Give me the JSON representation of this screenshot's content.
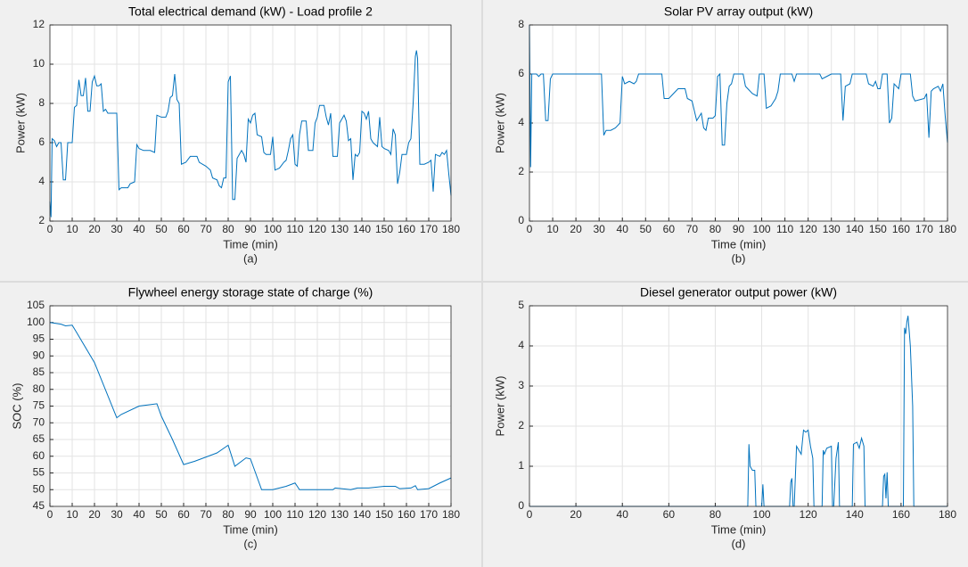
{
  "chart_data": [
    {
      "type": "line",
      "title": "Total electrical demand (kW) - Load profile 2",
      "xlabel": "Time (min)",
      "ylabel": "Power (kW)",
      "caption": "(a)",
      "color": "#0072bd",
      "grid": true,
      "xlim": [
        0,
        180
      ],
      "ylim": [
        2,
        12
      ],
      "xticks": [
        0,
        10,
        20,
        30,
        40,
        50,
        60,
        70,
        80,
        90,
        100,
        110,
        120,
        130,
        140,
        150,
        160,
        170,
        180
      ],
      "yticks": [
        2,
        4,
        6,
        8,
        10,
        12
      ],
      "x": [
        0,
        0.5,
        1,
        2,
        3,
        4,
        5,
        6,
        7,
        8,
        10,
        11,
        12,
        13,
        14,
        15,
        16,
        17,
        18,
        19,
        20,
        21,
        22,
        23,
        24,
        25,
        26,
        30,
        31,
        32,
        35,
        36,
        38,
        39,
        40,
        42,
        45,
        47,
        48,
        50,
        52,
        53,
        54,
        55,
        56,
        57,
        58,
        59,
        61,
        63,
        66,
        67,
        70,
        72,
        73,
        75,
        76,
        77,
        78,
        79,
        80,
        81,
        82,
        83,
        84,
        86,
        87,
        88,
        89,
        90,
        91,
        92,
        93,
        95,
        96,
        97,
        99,
        100,
        101,
        103,
        105,
        106,
        107,
        108,
        109,
        110,
        111,
        112,
        113,
        115,
        116,
        118,
        119,
        120,
        121,
        123,
        124,
        125,
        126,
        127,
        129,
        130,
        131,
        132,
        133,
        134,
        135,
        136,
        137,
        138,
        139,
        140,
        141,
        142,
        143,
        144,
        145,
        147,
        148,
        149,
        150,
        152,
        153,
        154,
        155,
        156,
        157,
        158,
        160,
        161,
        162,
        163,
        164,
        164.5,
        165,
        166,
        168,
        170,
        171,
        172,
        173,
        175,
        176,
        177,
        178,
        179,
        180
      ],
      "values": [
        3,
        2.2,
        6.2,
        6.1,
        5.8,
        6,
        6,
        4.1,
        4.1,
        6,
        6,
        7.8,
        7.9,
        9.2,
        8.4,
        8.4,
        9.3,
        7.6,
        7.6,
        9.1,
        9.4,
        8.9,
        8.9,
        9,
        7.6,
        7.7,
        7.5,
        7.5,
        3.6,
        3.7,
        3.7,
        3.9,
        4,
        5.9,
        5.7,
        5.6,
        5.6,
        5.5,
        7.4,
        7.3,
        7.3,
        7.6,
        8.3,
        8.4,
        9.5,
        8.2,
        8,
        4.9,
        5,
        5.3,
        5.3,
        5,
        4.8,
        4.6,
        4.2,
        4.1,
        3.8,
        3.7,
        4.2,
        4.2,
        9.1,
        9.4,
        3.1,
        3.1,
        5.2,
        5.6,
        5.4,
        5,
        7.2,
        7,
        7.4,
        7.5,
        6.4,
        6.3,
        5.5,
        5.4,
        5.4,
        6.3,
        4.6,
        4.7,
        5,
        5.1,
        5.6,
        6.2,
        6.4,
        4.9,
        4.8,
        6.4,
        7.1,
        7.1,
        5.6,
        5.6,
        7,
        7.3,
        7.9,
        7.9,
        7.3,
        6.9,
        7.5,
        5.3,
        5.3,
        7,
        7.2,
        7.4,
        7.1,
        6.1,
        6.2,
        4.1,
        5.4,
        5.3,
        5.5,
        7.6,
        7.5,
        7.2,
        7.6,
        6.2,
        6,
        5.8,
        7.3,
        5.8,
        5.7,
        5.6,
        5.4,
        6.7,
        6.4,
        3.9,
        4.5,
        5.4,
        5.4,
        6,
        6.2,
        8,
        10.4,
        10.7,
        10.3,
        4.9,
        4.9,
        5,
        5.1,
        3.5,
        5.4,
        5.3,
        5.5,
        5.4,
        5.6,
        4.4,
        3.3
      ]
    },
    {
      "type": "line",
      "title": "Solar PV array output (kW)",
      "xlabel": "Time (min)",
      "ylabel": "Power (kW)",
      "caption": "(b)",
      "color": "#0072bd",
      "grid": true,
      "xlim": [
        0,
        180
      ],
      "ylim": [
        0,
        8
      ],
      "xticks": [
        0,
        10,
        20,
        30,
        40,
        50,
        60,
        70,
        80,
        90,
        100,
        110,
        120,
        130,
        140,
        150,
        160,
        170,
        180
      ],
      "yticks": [
        0,
        2,
        4,
        6,
        8
      ],
      "x": [
        0,
        0.5,
        1,
        3,
        4,
        5,
        6,
        7,
        8,
        9,
        10,
        31,
        32,
        33,
        35,
        37,
        39,
        40,
        41,
        43,
        45,
        46,
        47,
        57,
        58,
        60,
        62,
        64,
        67,
        68,
        70,
        71,
        72,
        74,
        75,
        76,
        77,
        79,
        80,
        81,
        82,
        83,
        84,
        85,
        86,
        87,
        88,
        92,
        93,
        94,
        96,
        98,
        99,
        101,
        102,
        104,
        106,
        107,
        108,
        113,
        114,
        115,
        125,
        126,
        128,
        130,
        134,
        135,
        136,
        138,
        139,
        145,
        146,
        148,
        149,
        150,
        151,
        152,
        154,
        155,
        156,
        157,
        159,
        160,
        164,
        165,
        166,
        170,
        171,
        172,
        173,
        174,
        176,
        177,
        178,
        179,
        180
      ],
      "values": [
        8,
        2.2,
        6,
        6,
        5.9,
        6,
        6,
        4.1,
        4.1,
        5.8,
        6,
        6,
        3.5,
        3.7,
        3.7,
        3.8,
        4,
        5.9,
        5.6,
        5.7,
        5.6,
        5.7,
        6,
        6,
        5,
        5,
        5.2,
        5.4,
        5.4,
        5,
        4.9,
        4.5,
        4.1,
        4.4,
        3.8,
        3.7,
        4.2,
        4.2,
        4.3,
        5.9,
        6,
        3.1,
        3.1,
        4.8,
        5.5,
        5.6,
        6,
        6,
        5.5,
        5.4,
        5.2,
        5.1,
        6,
        6,
        4.6,
        4.7,
        5,
        5.3,
        6,
        6,
        5.7,
        6,
        6,
        5.8,
        5.9,
        6,
        6,
        4.1,
        5.5,
        5.6,
        6,
        6,
        5.6,
        5.5,
        5.7,
        5.4,
        5.4,
        6,
        6,
        4,
        4.2,
        5.6,
        5.4,
        6,
        6,
        5.1,
        4.9,
        5,
        5.2,
        3.4,
        5.3,
        5.4,
        5.5,
        5.3,
        5.6,
        4.3,
        3.2
      ]
    },
    {
      "type": "line",
      "title": "Flywheel energy storage state of charge (%)",
      "xlabel": "Time (min)",
      "ylabel": "SOC (%)",
      "caption": "(c)",
      "color": "#0072bd",
      "grid": true,
      "xlim": [
        0,
        180
      ],
      "ylim": [
        45,
        105
      ],
      "xticks": [
        0,
        10,
        20,
        30,
        40,
        50,
        60,
        70,
        80,
        90,
        100,
        110,
        120,
        130,
        140,
        150,
        160,
        170,
        180
      ],
      "yticks": [
        45,
        50,
        55,
        60,
        65,
        70,
        75,
        80,
        85,
        90,
        95,
        100,
        105
      ],
      "x": [
        0,
        5,
        7,
        10,
        12,
        20,
        30,
        32,
        40,
        48,
        50,
        55,
        60,
        65,
        75,
        80,
        83,
        88,
        90,
        95,
        100,
        106,
        110,
        112,
        127,
        128,
        135,
        138,
        143,
        150,
        155,
        157,
        162,
        164,
        165,
        170,
        175,
        180
      ],
      "values": [
        100,
        99.5,
        99,
        99.2,
        97,
        88,
        71.5,
        72.5,
        75,
        75.7,
        72,
        65,
        57.5,
        58.5,
        61,
        63.3,
        57,
        59.5,
        59.2,
        50,
        50,
        51,
        52,
        50,
        50,
        50.5,
        50,
        50.5,
        50.5,
        51,
        51,
        50.3,
        50.5,
        51.2,
        50,
        50.3,
        52,
        53.5
      ]
    },
    {
      "type": "line",
      "title": "Diesel generator output power (kW)",
      "xlabel": "Time (min)",
      "ylabel": "Power (kW)",
      "caption": "(d)",
      "color": "#0072bd",
      "grid": true,
      "xlim": [
        0,
        180
      ],
      "ylim": [
        0,
        5
      ],
      "xticks": [
        0,
        20,
        40,
        60,
        80,
        100,
        120,
        140,
        160,
        180
      ],
      "yticks": [
        0,
        1,
        2,
        3,
        4,
        5
      ],
      "x": [
        0,
        94,
        94.5,
        95,
        96,
        97,
        97.5,
        100,
        100.5,
        101,
        112,
        112.5,
        113,
        113.5,
        114,
        115,
        117,
        118,
        119,
        120,
        121,
        122,
        122.5,
        126,
        126.5,
        127,
        128,
        130,
        130.5,
        131,
        132,
        133,
        133.5,
        139,
        139.5,
        141,
        142,
        143,
        144,
        144.5,
        152,
        152.5,
        153,
        153.5,
        154,
        154.5,
        161,
        161.5,
        162,
        162.5,
        163,
        164,
        165,
        165.5,
        180
      ],
      "values": [
        0,
        0,
        1.55,
        1,
        0.9,
        0.9,
        0,
        0,
        0.55,
        0,
        0,
        0.6,
        0.7,
        0,
        0,
        1.5,
        1.3,
        1.9,
        1.85,
        1.9,
        1.5,
        1.2,
        0,
        0,
        1.4,
        1.3,
        1.45,
        1.5,
        0,
        0,
        1.2,
        1.6,
        0,
        0,
        1.55,
        1.6,
        1.45,
        1.7,
        1.5,
        0,
        0,
        0.75,
        0.8,
        0.2,
        0.85,
        0,
        0,
        4.45,
        4.3,
        4.6,
        4.75,
        4,
        2.5,
        0,
        0
      ]
    }
  ]
}
